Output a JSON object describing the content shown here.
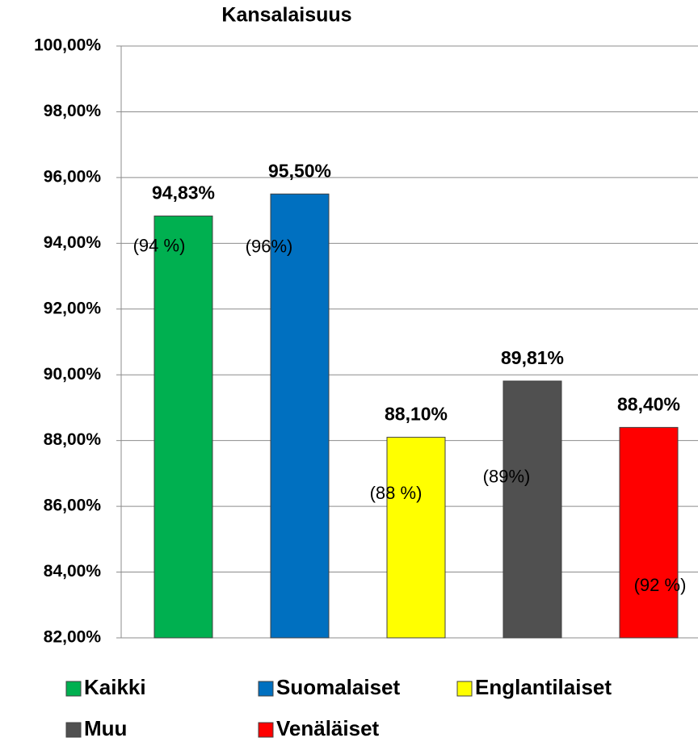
{
  "chart_data": {
    "type": "bar",
    "title": "Kansalaisuus",
    "series": [
      {
        "name": "Kaikki",
        "color": "#00b050",
        "values": [
          94.83
        ],
        "value_labels": [
          "94,83%"
        ],
        "note": "(94 %)"
      },
      {
        "name": "Suomalaiset",
        "color": "#0070c0",
        "values": [
          95.5
        ],
        "value_labels": [
          "95,50%"
        ],
        "note": "(96%)"
      },
      {
        "name": "Englantilaiset",
        "color": "#ffff00",
        "values": [
          88.1
        ],
        "value_labels": [
          "88,10%"
        ],
        "note": "(88 %)"
      },
      {
        "name": "Muu",
        "color": "#505050",
        "values": [
          89.81
        ],
        "value_labels": [
          "89,81%"
        ],
        "note": "(89%)"
      },
      {
        "name": "Venäläiset",
        "color": "#ff0000",
        "values": [
          88.4
        ],
        "value_labels": [
          "88,40%"
        ],
        "note": "(92 %)"
      }
    ],
    "ylim": [
      82,
      100
    ],
    "yticks": [
      {
        "value": 82,
        "label": "82,00%"
      },
      {
        "value": 84,
        "label": "84,00%"
      },
      {
        "value": 86,
        "label": "86,00%"
      },
      {
        "value": 88,
        "label": "88,00%"
      },
      {
        "value": 90,
        "label": "90,00%"
      },
      {
        "value": 92,
        "label": "92,00%"
      },
      {
        "value": 94,
        "label": "94,00%"
      },
      {
        "value": 96,
        "label": "96,00%"
      },
      {
        "value": 98,
        "label": "98,00%"
      },
      {
        "value": 100,
        "label": "100,00%"
      }
    ],
    "grid": true,
    "legend": "bottom"
  }
}
